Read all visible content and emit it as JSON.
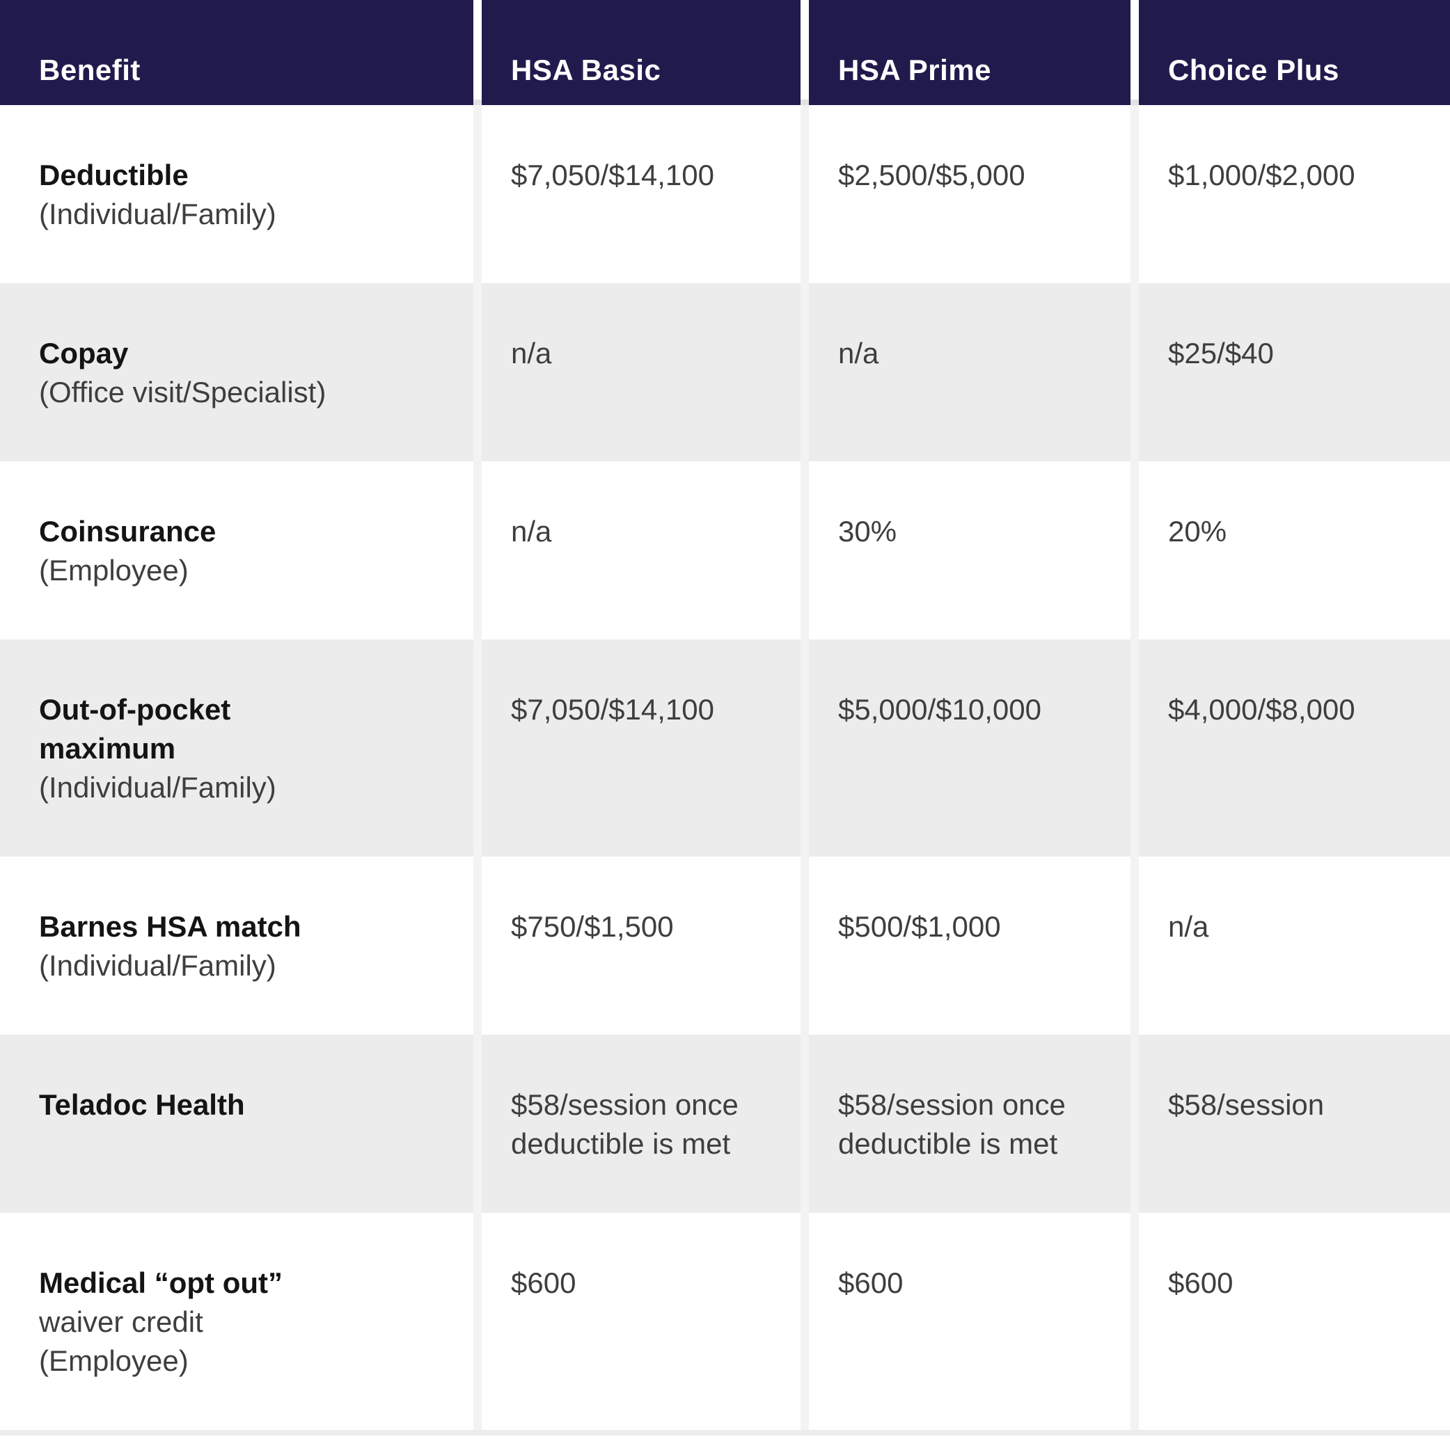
{
  "header": {
    "columns": [
      "Benefit",
      "HSA Basic",
      "HSA Prime",
      "Choice Plus"
    ]
  },
  "rows": [
    {
      "label_bold_lines": [
        "Deductible"
      ],
      "label_sub_lines": [
        "(Individual/Family)"
      ],
      "values": [
        "$7,050/$14,100",
        "$2,500/$5,000",
        "$1,000/$2,000"
      ]
    },
    {
      "label_bold_lines": [
        "Copay"
      ],
      "label_sub_lines": [
        "(Office visit/Specialist)"
      ],
      "values": [
        "n/a",
        "n/a",
        "$25/$40"
      ]
    },
    {
      "label_bold_lines": [
        "Coinsurance"
      ],
      "label_sub_lines": [
        "(Employee)"
      ],
      "values": [
        "n/a",
        "30%",
        "20%"
      ]
    },
    {
      "label_bold_lines": [
        "Out-of-pocket",
        "maximum"
      ],
      "label_sub_lines": [
        "(Individual/Family)"
      ],
      "values": [
        "$7,050/$14,100",
        "$5,000/$10,000",
        "$4,000/$8,000"
      ]
    },
    {
      "label_bold_lines": [
        "Barnes HSA match"
      ],
      "label_sub_lines": [
        "(Individual/Family)"
      ],
      "values": [
        "$750/$1,500",
        "$500/$1,000",
        "n/a"
      ]
    },
    {
      "label_bold_lines": [
        "Teladoc Health"
      ],
      "label_sub_lines": [],
      "values": [
        "$58/session once deductible is met",
        "$58/session once deductible is met",
        "$58/session"
      ]
    },
    {
      "label_bold_lines": [
        "Medical “opt out”"
      ],
      "label_sub_lines": [
        "waiver credit",
        "(Employee)"
      ],
      "values": [
        "$600",
        "$600",
        "$600"
      ]
    }
  ],
  "colors": {
    "header_background": "#211b4d",
    "header_text": "#ffffff",
    "row_alt_background": "#ececec",
    "row_background": "#ffffff"
  }
}
